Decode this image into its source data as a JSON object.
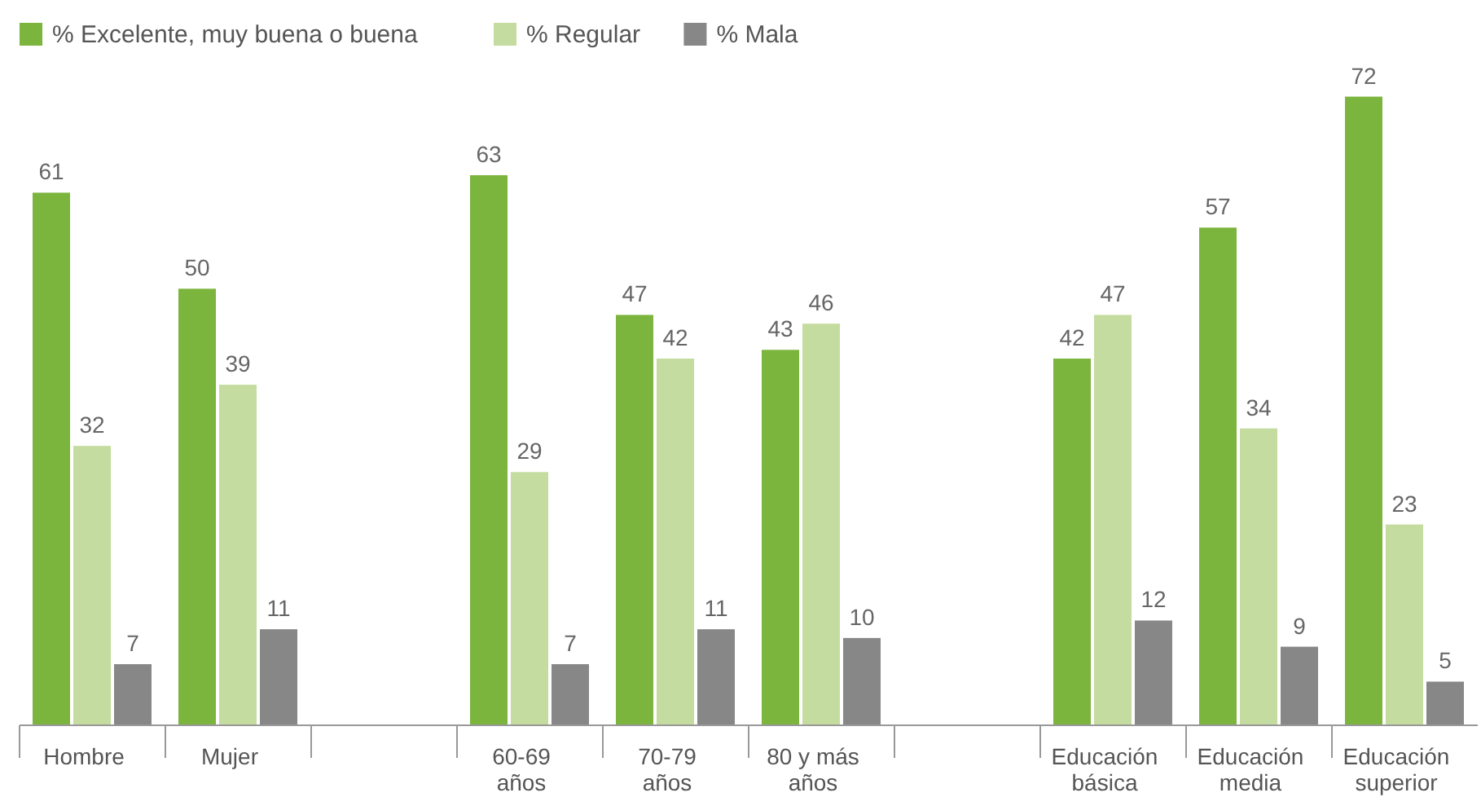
{
  "chart_data": {
    "type": "bar",
    "categories": [
      "Hombre",
      "Mujer",
      null,
      "60-69 años",
      "70-79 años",
      "80 y más años",
      null,
      "Educación básica",
      "Educación media",
      "Educación superior"
    ],
    "series": [
      {
        "name": "% Excelente, muy buena o buena",
        "color": "#7cb53e",
        "values": [
          61,
          50,
          null,
          63,
          47,
          43,
          null,
          42,
          57,
          72
        ]
      },
      {
        "name": "% Regular",
        "color": "#c5dca0",
        "values": [
          32,
          39,
          null,
          29,
          42,
          46,
          null,
          47,
          34,
          23
        ]
      },
      {
        "name": "% Mala",
        "color": "#878787",
        "values": [
          7,
          11,
          null,
          7,
          11,
          10,
          null,
          12,
          9,
          5
        ]
      }
    ],
    "data_labels": true,
    "legend": "top left",
    "grid": false
  }
}
